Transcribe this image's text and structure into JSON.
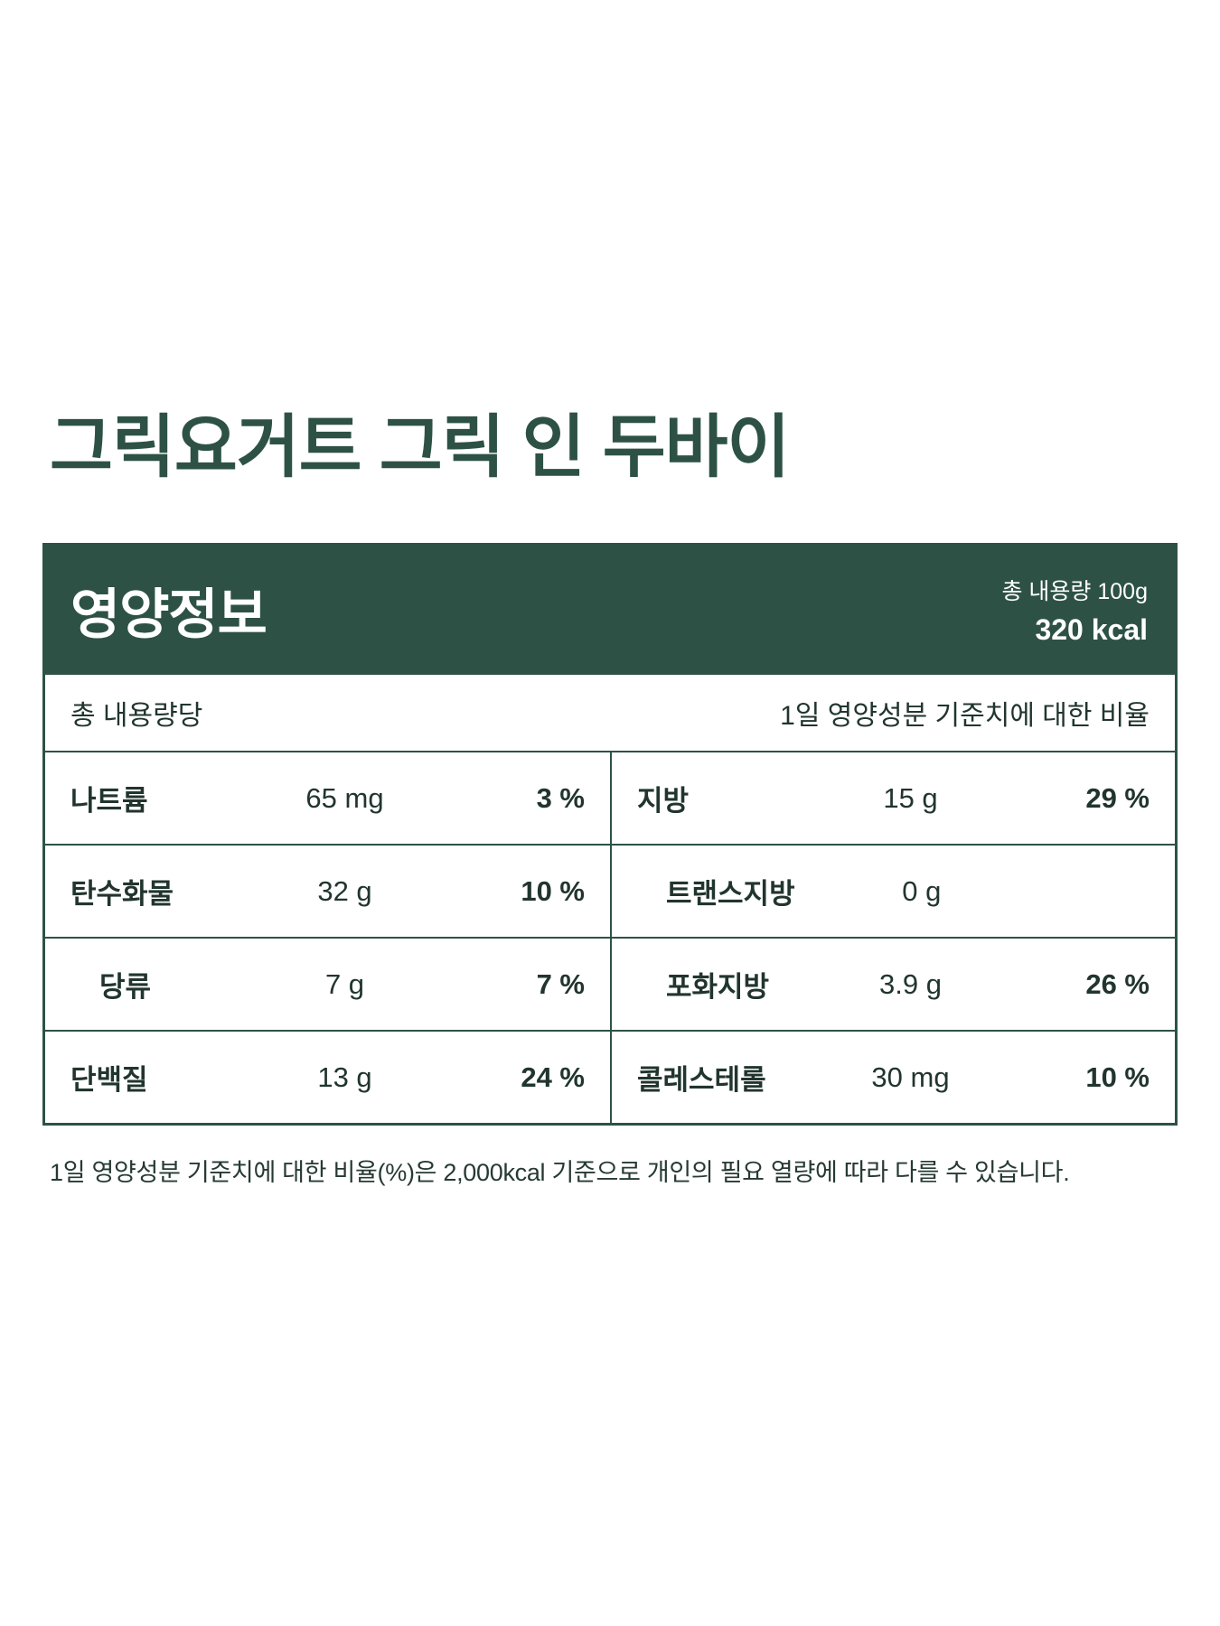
{
  "page": {
    "title": "그릭요거트 그릭 인 두바이"
  },
  "label": {
    "header": {
      "title": "영양정보",
      "total_amount": "총 내용량 100g",
      "calories": "320 kcal"
    },
    "subheader": {
      "left": "총 내용량당",
      "right": "1일 영양성분 기준치에 대한 비율"
    },
    "rows": [
      {
        "left": {
          "name": "나트륨",
          "amount": "65 mg",
          "percent": "3 %"
        },
        "right": {
          "name": "지방",
          "amount": "15 g",
          "percent": "29 %"
        }
      },
      {
        "left": {
          "name": "탄수화물",
          "amount": "32 g",
          "percent": "10 %"
        },
        "right": {
          "name": "트랜스지방",
          "amount": "0 g",
          "percent": ""
        }
      },
      {
        "left": {
          "name": "당류",
          "amount": "7 g",
          "percent": "7 %"
        },
        "right": {
          "name": "포화지방",
          "amount": "3.9 g",
          "percent": "26 %"
        }
      },
      {
        "left": {
          "name": "단백질",
          "amount": "13 g",
          "percent": "24 %"
        },
        "right": {
          "name": "콜레스테롤",
          "amount": "30 mg",
          "percent": "10 %"
        }
      }
    ],
    "footnote": "1일 영양성분 기준치에 대한 비율(%)은 2,000kcal 기준으로 개인의 필요 열량에 따라 다를 수 있습니다."
  },
  "colors": {
    "primary_green": "#2D5245",
    "header_text": "#FFFFFF"
  }
}
